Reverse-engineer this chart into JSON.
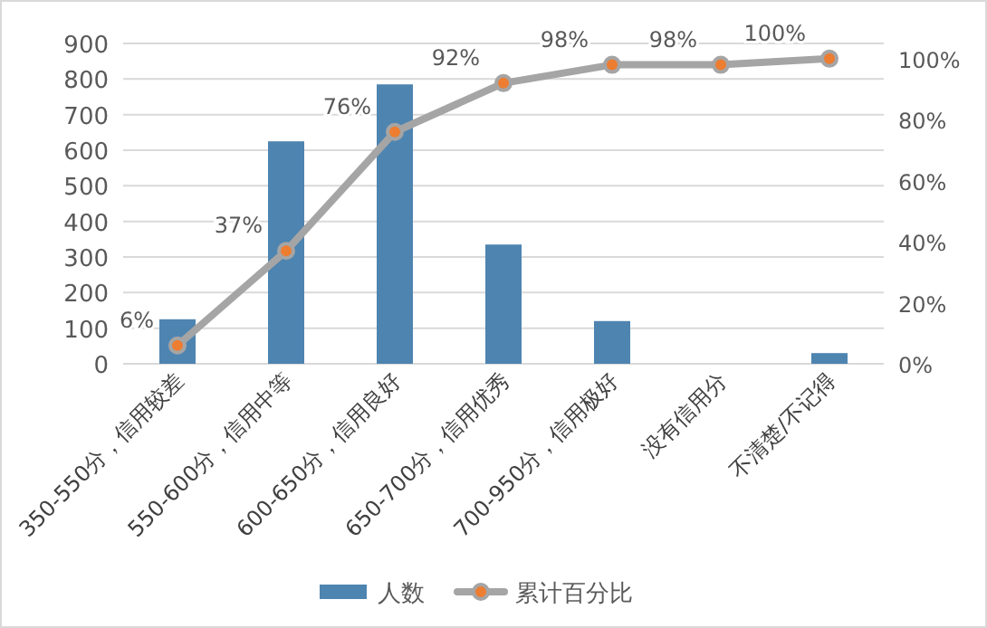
{
  "chart_data": {
    "type": "bar",
    "categories": [
      "350-550分，信用较差",
      "550-600分，信用中等",
      "600-650分，信用良好",
      "650-700分，信用优秀",
      "700-950分，信用极好",
      "没有信用分",
      "不清楚/不记得"
    ],
    "series": [
      {
        "name": "人数",
        "color": "#4e84b0",
        "values": [
          125,
          625,
          785,
          335,
          120,
          0,
          30
        ]
      },
      {
        "name": "累计百分比",
        "type": "line",
        "axis": "y2",
        "color": "#a5a5a5",
        "marker": "circle",
        "values": [
          6,
          37,
          76,
          92,
          98,
          98,
          100
        ],
        "value_labels": [
          "6%",
          "37%",
          "76%",
          "92%",
          "98%",
          "98%",
          "100%"
        ]
      }
    ],
    "ylim": [
      0,
      900
    ],
    "yticks": [
      0,
      100,
      200,
      300,
      400,
      500,
      600,
      700,
      800,
      900
    ],
    "y2lim": [
      0,
      105
    ],
    "y2ticks": [
      {
        "value": 0,
        "label": "0%"
      },
      {
        "value": 20,
        "label": "20%"
      },
      {
        "value": 40,
        "label": "40%"
      },
      {
        "value": 60,
        "label": "60%"
      },
      {
        "value": 80,
        "label": "80%"
      },
      {
        "value": 100,
        "label": "100%"
      }
    ],
    "grid": "y",
    "legend": "bottom"
  }
}
